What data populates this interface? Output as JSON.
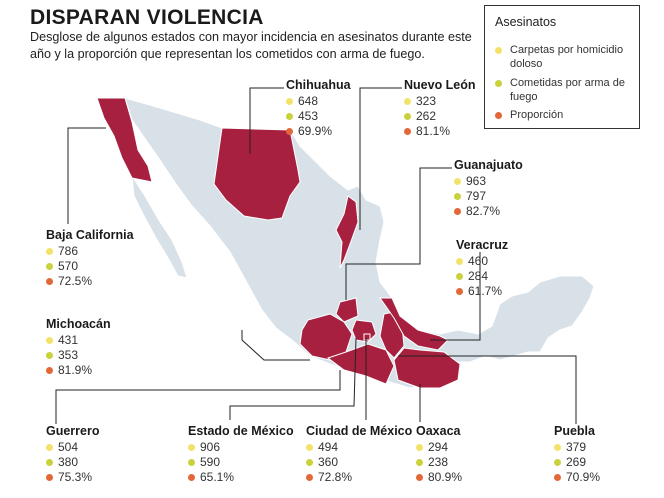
{
  "title": "DISPARAN VIOLENCIA",
  "subtitle": "Desglose de algunos estados con mayor incidencia en asesinatos durante este año y la proporción que representan los cometidos con arma de fuego.",
  "legend": {
    "title": "Asesinatos",
    "items": [
      {
        "label": "Carpetas por homicidio doloso",
        "color": "#f3e26a"
      },
      {
        "label": "Cometidas por arma de fuego",
        "color": "#c9d23c"
      },
      {
        "label": "Proporción",
        "color": "#e2683a"
      }
    ]
  },
  "colors": {
    "highlight": "#a8203f",
    "land": "#d8e1e8",
    "state_border": "#ffffff",
    "leader_line": "#222222"
  },
  "states": {
    "chihuahua": {
      "name": "Chihuahua",
      "carpetas": "648",
      "arma": "453",
      "proporcion": "69.9%"
    },
    "nuevo_leon": {
      "name": "Nuevo León",
      "carpetas": "323",
      "arma": "262",
      "proporcion": "81.1%"
    },
    "guanajuato": {
      "name": "Guanajuato",
      "carpetas": "963",
      "arma": "797",
      "proporcion": "82.7%"
    },
    "baja_california": {
      "name": "Baja California",
      "carpetas": "786",
      "arma": "570",
      "proporcion": "72.5%"
    },
    "veracruz": {
      "name": "Veracruz",
      "carpetas": "460",
      "arma": "284",
      "proporcion": "61.7%"
    },
    "michoacan": {
      "name": "Michoacán",
      "carpetas": "431",
      "arma": "353",
      "proporcion": "81.9%"
    },
    "guerrero": {
      "name": "Guerrero",
      "carpetas": "504",
      "arma": "380",
      "proporcion": "75.3%"
    },
    "estado_de_mexico": {
      "name": "Estado de México",
      "carpetas": "906",
      "arma": "590",
      "proporcion": "65.1%"
    },
    "ciudad_de_mexico": {
      "name": "Ciudad de México",
      "carpetas": "494",
      "arma": "360",
      "proporcion": "72.8%"
    },
    "oaxaca": {
      "name": "Oaxaca",
      "carpetas": "294",
      "arma": "238",
      "proporcion": "80.9%"
    },
    "puebla": {
      "name": "Puebla",
      "carpetas": "379",
      "arma": "269",
      "proporcion": "70.9%"
    }
  }
}
